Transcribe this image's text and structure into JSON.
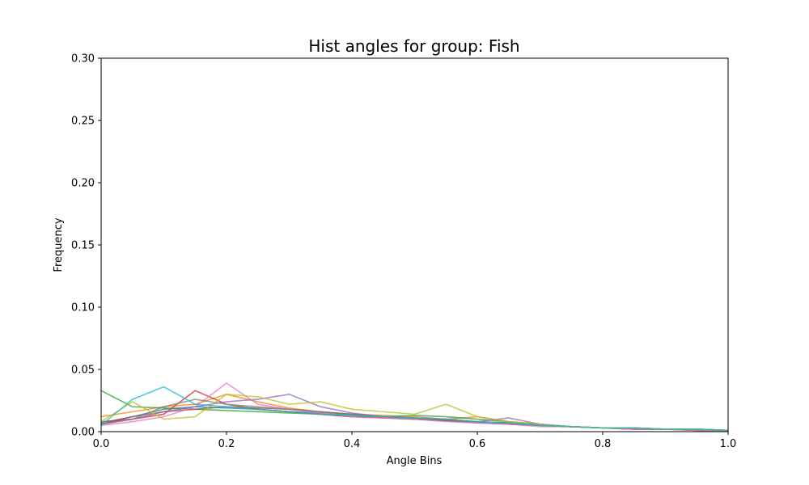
{
  "chart_data": {
    "type": "line",
    "title": "Hist angles for group: Fish",
    "xlabel": "Angle Bins",
    "ylabel": "Frequency",
    "xlim": [
      0,
      1
    ],
    "ylim": [
      0,
      0.3
    ],
    "xticks": [
      "0.0",
      "0.2",
      "0.4",
      "0.6",
      "0.8",
      "1.0"
    ],
    "yticks": [
      "0.00",
      "0.05",
      "0.10",
      "0.15",
      "0.20",
      "0.25",
      "0.30"
    ],
    "grid": false,
    "legend": "none",
    "x": [
      0.0,
      0.05,
      0.1,
      0.15,
      0.2,
      0.25,
      0.3,
      0.35,
      0.4,
      0.45,
      0.5,
      0.55,
      0.6,
      0.65,
      0.7,
      0.75,
      0.8,
      0.85,
      0.9,
      0.95,
      1.0
    ],
    "series": [
      {
        "color": "#1f77b4",
        "values": [
          0.006,
          0.012,
          0.018,
          0.02,
          0.019,
          0.018,
          0.016,
          0.015,
          0.013,
          0.012,
          0.011,
          0.01,
          0.008,
          0.007,
          0.005,
          0.004,
          0.003,
          0.003,
          0.002,
          0.002,
          0.001
        ]
      },
      {
        "color": "#ff7f0e",
        "values": [
          0.012,
          0.016,
          0.02,
          0.022,
          0.03,
          0.024,
          0.019,
          0.016,
          0.014,
          0.013,
          0.012,
          0.01,
          0.012,
          0.008,
          0.006,
          0.004,
          0.003,
          0.003,
          0.002,
          0.002,
          0.001
        ]
      },
      {
        "color": "#2ca02c",
        "values": [
          0.033,
          0.02,
          0.019,
          0.018,
          0.017,
          0.016,
          0.015,
          0.014,
          0.012,
          0.012,
          0.013,
          0.012,
          0.01,
          0.008,
          0.006,
          0.004,
          0.003,
          0.003,
          0.002,
          0.002,
          0.001
        ]
      },
      {
        "color": "#d62728",
        "values": [
          0.008,
          0.01,
          0.014,
          0.033,
          0.022,
          0.018,
          0.016,
          0.014,
          0.012,
          0.011,
          0.01,
          0.009,
          0.008,
          0.006,
          0.005,
          0.004,
          0.003,
          0.002,
          0.002,
          0.001,
          0.001
        ]
      },
      {
        "color": "#9467bd",
        "values": [
          0.006,
          0.01,
          0.016,
          0.02,
          0.024,
          0.026,
          0.03,
          0.02,
          0.015,
          0.012,
          0.01,
          0.009,
          0.008,
          0.011,
          0.006,
          0.004,
          0.003,
          0.002,
          0.002,
          0.002,
          0.001
        ]
      },
      {
        "color": "#8c564b",
        "values": [
          0.007,
          0.012,
          0.016,
          0.018,
          0.02,
          0.019,
          0.018,
          0.016,
          0.014,
          0.012,
          0.01,
          0.009,
          0.007,
          0.006,
          0.005,
          0.004,
          0.003,
          0.002,
          0.002,
          0.001,
          0.001
        ]
      },
      {
        "color": "#e377c2",
        "values": [
          0.005,
          0.008,
          0.012,
          0.02,
          0.039,
          0.022,
          0.018,
          0.015,
          0.012,
          0.011,
          0.01,
          0.008,
          0.007,
          0.006,
          0.004,
          0.004,
          0.003,
          0.002,
          0.002,
          0.001,
          0.001
        ]
      },
      {
        "color": "#7f7f7f",
        "values": [
          0.006,
          0.01,
          0.02,
          0.026,
          0.022,
          0.02,
          0.018,
          0.016,
          0.014,
          0.012,
          0.011,
          0.01,
          0.008,
          0.007,
          0.005,
          0.004,
          0.003,
          0.003,
          0.002,
          0.002,
          0.001
        ]
      },
      {
        "color": "#bcbd22",
        "values": [
          0.008,
          0.024,
          0.01,
          0.012,
          0.03,
          0.028,
          0.022,
          0.024,
          0.018,
          0.016,
          0.014,
          0.022,
          0.012,
          0.008,
          0.006,
          0.004,
          0.003,
          0.003,
          0.002,
          0.002,
          0.001
        ]
      },
      {
        "color": "#17becf",
        "values": [
          0.005,
          0.026,
          0.036,
          0.022,
          0.02,
          0.018,
          0.016,
          0.014,
          0.013,
          0.012,
          0.011,
          0.01,
          0.008,
          0.007,
          0.005,
          0.004,
          0.003,
          0.003,
          0.002,
          0.002,
          0.001
        ]
      }
    ]
  }
}
